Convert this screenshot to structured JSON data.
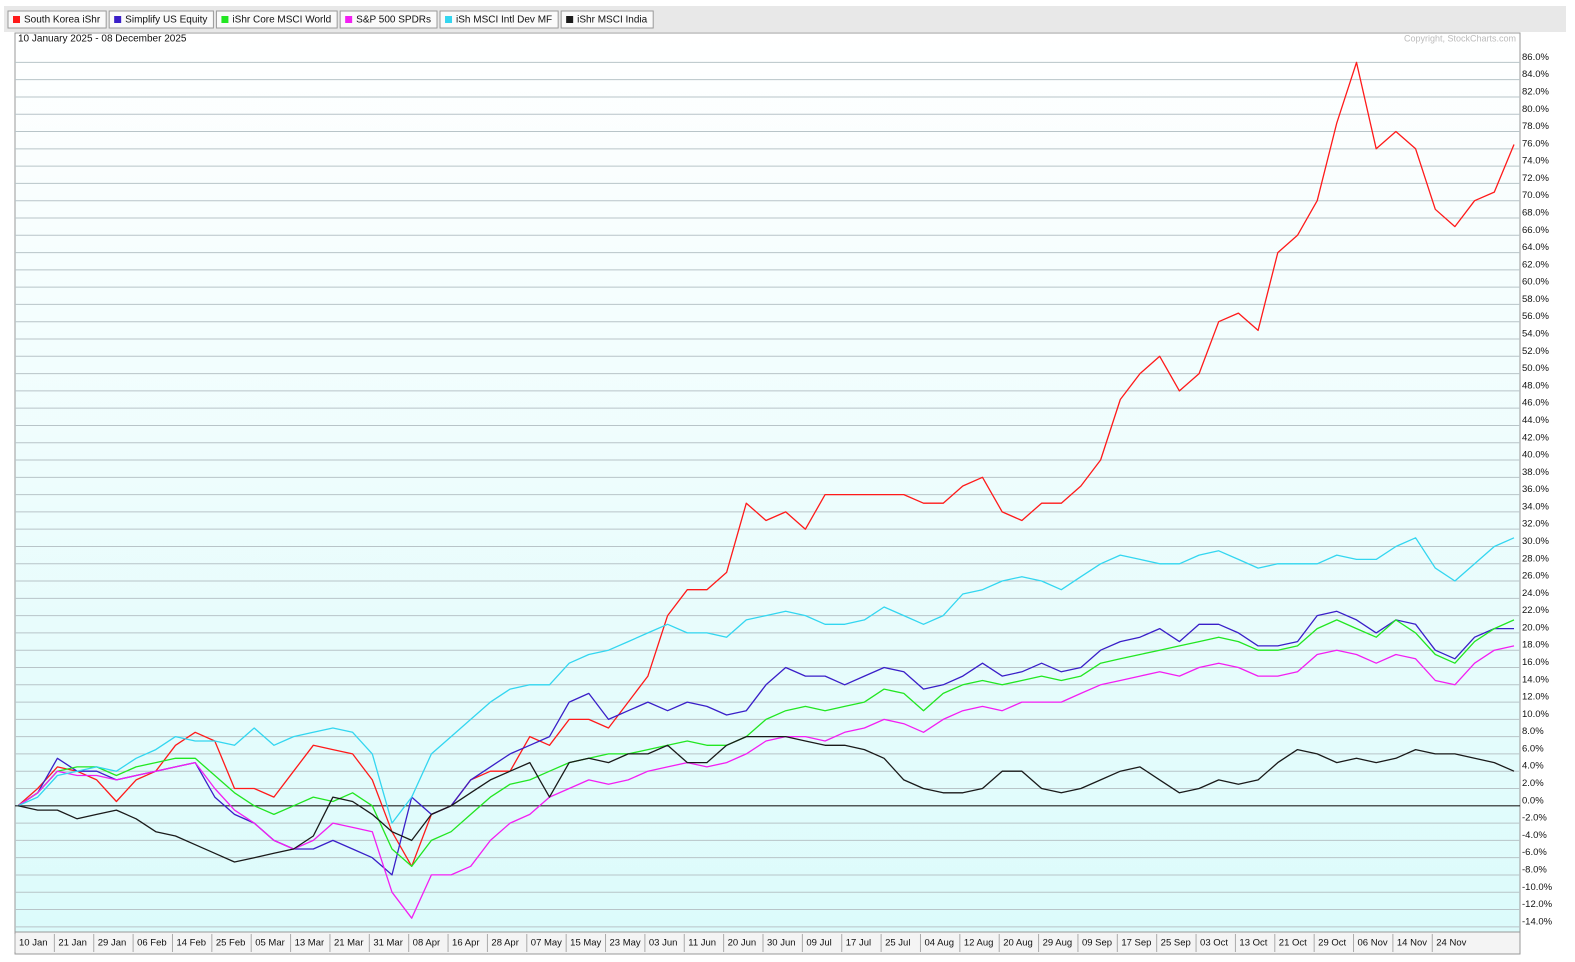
{
  "chart_data": {
    "type": "line",
    "subtitle": "10 January 2025 - 08 December 2025",
    "annotations": [
      "Copyright, StockCharts.com"
    ],
    "legend": "top-left",
    "grid": true,
    "categories": [
      "10 Jan",
      null,
      "21 Jan",
      null,
      "29 Jan",
      null,
      "06 Feb",
      null,
      "14 Feb",
      null,
      "25 Feb",
      null,
      "05 Mar",
      null,
      "13 Mar",
      null,
      "21 Mar",
      null,
      "31 Mar",
      null,
      "08 Apr",
      null,
      "16 Apr",
      null,
      "28 Apr",
      null,
      "07 May",
      null,
      "15 May",
      null,
      "23 May",
      null,
      "03 Jun",
      null,
      "11 Jun",
      null,
      "20 Jun",
      null,
      "30 Jun",
      null,
      "09 Jul",
      null,
      "17 Jul",
      null,
      "25 Jul",
      null,
      "04 Aug",
      null,
      "12 Aug",
      null,
      "20 Aug",
      null,
      "29 Aug",
      null,
      "09 Sep",
      null,
      "17 Sep",
      null,
      "25 Sep",
      null,
      "03 Oct",
      null,
      "13 Oct",
      null,
      "21 Oct",
      null,
      "29 Oct",
      null,
      "06 Nov",
      null,
      "14 Nov",
      null,
      "24 Nov",
      null,
      null,
      null,
      null
    ],
    "ylim": [
      -14.6,
      89.4
    ],
    "yticks": [
      {
        "value": -14,
        "label": "-14.0%"
      },
      {
        "value": -12,
        "label": "-12.0%"
      },
      {
        "value": -10,
        "label": "-10.0%"
      },
      {
        "value": -8,
        "label": "-8.0%"
      },
      {
        "value": -6,
        "label": "-6.0%"
      },
      {
        "value": -4,
        "label": "-4.0%"
      },
      {
        "value": -2,
        "label": "-2.0%"
      },
      {
        "value": 0,
        "label": "0.0%"
      },
      {
        "value": 2,
        "label": "2.0%"
      },
      {
        "value": 4,
        "label": "4.0%"
      },
      {
        "value": 6,
        "label": "6.0%"
      },
      {
        "value": 8,
        "label": "8.0%"
      },
      {
        "value": 10,
        "label": "10.0%"
      },
      {
        "value": 12,
        "label": "12.0%"
      },
      {
        "value": 14,
        "label": "14.0%"
      },
      {
        "value": 16,
        "label": "16.0%"
      },
      {
        "value": 18,
        "label": "18.0%"
      },
      {
        "value": 20,
        "label": "20.0%"
      },
      {
        "value": 22,
        "label": "22.0%"
      },
      {
        "value": 24,
        "label": "24.0%"
      },
      {
        "value": 26,
        "label": "26.0%"
      },
      {
        "value": 28,
        "label": "28.0%"
      },
      {
        "value": 30,
        "label": "30.0%"
      },
      {
        "value": 32,
        "label": "32.0%"
      },
      {
        "value": 34,
        "label": "34.0%"
      },
      {
        "value": 36,
        "label": "36.0%"
      },
      {
        "value": 38,
        "label": "38.0%"
      },
      {
        "value": 40,
        "label": "40.0%"
      },
      {
        "value": 42,
        "label": "42.0%"
      },
      {
        "value": 44,
        "label": "44.0%"
      },
      {
        "value": 46,
        "label": "46.0%"
      },
      {
        "value": 48,
        "label": "48.0%"
      },
      {
        "value": 50,
        "label": "50.0%"
      },
      {
        "value": 52,
        "label": "52.0%"
      },
      {
        "value": 54,
        "label": "54.0%"
      },
      {
        "value": 56,
        "label": "56.0%"
      },
      {
        "value": 58,
        "label": "58.0%"
      },
      {
        "value": 60,
        "label": "60.0%"
      },
      {
        "value": 62,
        "label": "62.0%"
      },
      {
        "value": 64,
        "label": "64.0%"
      },
      {
        "value": 66,
        "label": "66.0%"
      },
      {
        "value": 68,
        "label": "68.0%"
      },
      {
        "value": 70,
        "label": "70.0%"
      },
      {
        "value": 72,
        "label": "72.0%"
      },
      {
        "value": 74,
        "label": "74.0%"
      },
      {
        "value": 76,
        "label": "76.0%"
      },
      {
        "value": 78,
        "label": "78.0%"
      },
      {
        "value": 80,
        "label": "80.0%"
      },
      {
        "value": 82,
        "label": "82.0%"
      },
      {
        "value": 84,
        "label": "84.0%"
      },
      {
        "value": 86,
        "label": "86.0%"
      }
    ],
    "series": [
      {
        "name": "South Korea iShr",
        "color": "#ff1a1a",
        "values": [
          0,
          2,
          4.5,
          4,
          3,
          0.5,
          3,
          4,
          7,
          8.5,
          7.5,
          2,
          2,
          1,
          4,
          7,
          6.5,
          6,
          3,
          -3,
          -7,
          -1,
          0,
          3,
          4,
          4,
          8,
          7,
          10,
          10,
          9,
          12,
          15,
          22,
          25,
          25,
          27,
          35,
          33,
          34,
          32,
          36,
          36,
          36,
          36,
          36,
          35,
          35,
          37,
          38,
          34,
          33,
          35,
          35,
          37,
          40,
          47,
          50,
          52,
          48,
          50,
          56,
          57,
          55,
          64,
          66,
          70,
          79,
          86,
          76,
          78,
          76,
          69,
          67,
          70,
          71,
          76.5
        ]
      },
      {
        "name": "Simplify US Equity",
        "color": "#3a1fc8",
        "values": [
          0,
          1.5,
          5.5,
          4,
          4,
          3,
          3.5,
          4,
          4.5,
          5,
          1,
          -1,
          -2,
          -4,
          -5,
          -5,
          -4,
          -5,
          -6,
          -8,
          1,
          -1,
          0,
          3,
          4.5,
          6,
          7,
          8,
          12,
          13,
          10,
          11,
          12,
          11,
          12,
          11.5,
          10.5,
          11,
          14,
          16,
          15,
          15,
          14,
          15,
          16,
          15.5,
          13.5,
          14,
          15,
          16.5,
          15,
          15.5,
          16.5,
          15.5,
          16,
          18,
          19,
          19.5,
          20.5,
          19,
          21,
          21,
          20,
          18.5,
          18.5,
          19,
          22,
          22.5,
          21.5,
          20,
          21.5,
          21,
          18,
          17,
          19.5,
          20.5,
          20.5
        ]
      },
      {
        "name": "iShr Core MSCI World",
        "color": "#22e622",
        "values": [
          0,
          1.5,
          4,
          4.5,
          4.5,
          3.5,
          4.5,
          5,
          5.5,
          5.5,
          3.5,
          1.5,
          0,
          -1,
          0,
          1,
          0.5,
          1.5,
          0,
          -5,
          -7,
          -4,
          -3,
          -1,
          1,
          2.5,
          3,
          4,
          5,
          5.5,
          6,
          6,
          6.5,
          7,
          7.5,
          7,
          7,
          8,
          10,
          11,
          11.5,
          11,
          11.5,
          12,
          13.5,
          13,
          11,
          13,
          14,
          14.5,
          14,
          14.5,
          15,
          14.5,
          15,
          16.5,
          17,
          17.5,
          18,
          18.5,
          19,
          19.5,
          19,
          18,
          18,
          18.5,
          20.5,
          21.5,
          20.5,
          19.5,
          21.5,
          20,
          17.5,
          16.5,
          19,
          20.5,
          21.5
        ]
      },
      {
        "name": "S&P 500 SPDRs",
        "color": "#f21ff2",
        "values": [
          0,
          1.5,
          4,
          3.5,
          3.5,
          3,
          3.5,
          4,
          4.5,
          5,
          2,
          -0.5,
          -2,
          -4,
          -5,
          -4,
          -2,
          -2.5,
          -3,
          -10,
          -13,
          -8,
          -8,
          -7,
          -4,
          -2,
          -1,
          1,
          2,
          3,
          2.5,
          3,
          4,
          4.5,
          5,
          4.5,
          5,
          6,
          7.5,
          8,
          8,
          7.5,
          8.5,
          9,
          10,
          9.5,
          8.5,
          10,
          11,
          11.5,
          11,
          12,
          12,
          12,
          13,
          14,
          14.5,
          15,
          15.5,
          15,
          16,
          16.5,
          16,
          15,
          15,
          15.5,
          17.5,
          18,
          17.5,
          16.5,
          17.5,
          17,
          14.5,
          14,
          16.5,
          18,
          18.5
        ]
      },
      {
        "name": "iSh MSCI Intl Dev MF",
        "color": "#33d6f0",
        "values": [
          0,
          1,
          3.5,
          4,
          4.5,
          4,
          5.5,
          6.5,
          8,
          7.5,
          7.5,
          7,
          9,
          7,
          8,
          8.5,
          9,
          8.5,
          6,
          -2,
          1,
          6,
          8,
          10,
          12,
          13.5,
          14,
          14,
          16.5,
          17.5,
          18,
          19,
          20,
          21,
          20,
          20,
          19.5,
          21.5,
          22,
          22.5,
          22,
          21,
          21,
          21.5,
          23,
          22,
          21,
          22,
          24.5,
          25,
          26,
          26.5,
          26,
          25,
          26.5,
          28,
          29,
          28.5,
          28,
          28,
          29,
          29.5,
          28.5,
          27.5,
          28,
          28,
          28,
          29,
          28.5,
          28.5,
          30,
          31,
          27.5,
          26,
          28,
          30,
          31
        ]
      },
      {
        "name": "iShr MSCI India",
        "color": "#1a1a1a",
        "values": [
          0,
          -0.5,
          -0.5,
          -1.5,
          -1,
          -0.5,
          -1.5,
          -3,
          -3.5,
          -4.5,
          -5.5,
          -6.5,
          -6,
          -5.5,
          -5,
          -3.5,
          1,
          0.5,
          -1,
          -3,
          -4,
          -1,
          0,
          1.5,
          3,
          4,
          5,
          1,
          5,
          5.5,
          5,
          6,
          6,
          7,
          5,
          5,
          7,
          8,
          8,
          8,
          7.5,
          7,
          7,
          6.5,
          5.5,
          3,
          2,
          1.5,
          1.5,
          2,
          4,
          4,
          2,
          1.5,
          2,
          3,
          4,
          4.5,
          3,
          1.5,
          2,
          3,
          2.5,
          3,
          5,
          6.5,
          6,
          5,
          5.5,
          5,
          5.5,
          6.5,
          6,
          6,
          5.5,
          5,
          4
        ]
      }
    ]
  }
}
